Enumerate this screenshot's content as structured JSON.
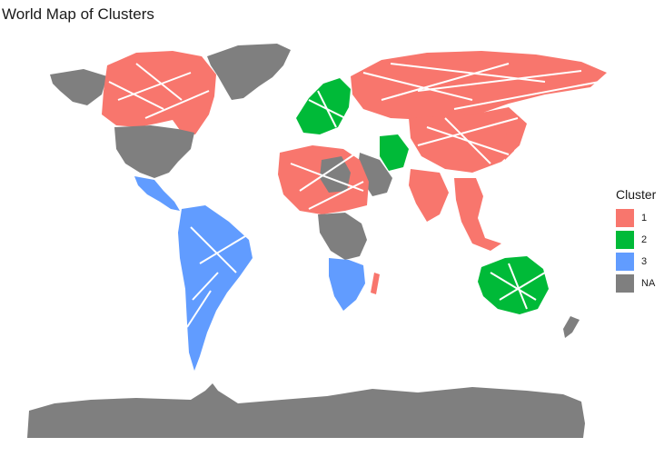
{
  "title": "World Map of Clusters",
  "legend": {
    "title": "Cluster",
    "items": [
      {
        "label": "1",
        "color": "#F8766D"
      },
      {
        "label": "2",
        "color": "#00BA38"
      },
      {
        "label": "3",
        "color": "#619CFF"
      },
      {
        "label": "NA",
        "color": "#7F7F7F"
      }
    ]
  },
  "colors": {
    "cluster_1": "#F8766D",
    "cluster_2": "#00BA38",
    "cluster_3": "#619CFF",
    "na": "#7F7F7F",
    "background": "#FFFFFF"
  },
  "regions": [
    {
      "name": "Greenland",
      "cluster": "NA"
    },
    {
      "name": "Canada",
      "cluster": "1"
    },
    {
      "name": "Alaska",
      "cluster": "NA"
    },
    {
      "name": "United States",
      "cluster": "NA"
    },
    {
      "name": "Mexico",
      "cluster": "3"
    },
    {
      "name": "South America",
      "cluster": "3"
    },
    {
      "name": "Western Europe",
      "cluster": "2"
    },
    {
      "name": "Russia",
      "cluster": "1"
    },
    {
      "name": "Central Asia",
      "cluster": "1"
    },
    {
      "name": "China",
      "cluster": "1"
    },
    {
      "name": "India",
      "cluster": "1"
    },
    {
      "name": "Southeast Asia",
      "cluster": "1"
    },
    {
      "name": "North Africa",
      "cluster": "1"
    },
    {
      "name": "Libya",
      "cluster": "NA"
    },
    {
      "name": "Arabian Peninsula",
      "cluster": "NA"
    },
    {
      "name": "Iran",
      "cluster": "2"
    },
    {
      "name": "Central Africa",
      "cluster": "NA"
    },
    {
      "name": "Southern Africa",
      "cluster": "3"
    },
    {
      "name": "Madagascar",
      "cluster": "1"
    },
    {
      "name": "Australia",
      "cluster": "2"
    },
    {
      "name": "New Zealand",
      "cluster": "NA"
    },
    {
      "name": "Antarctica",
      "cluster": "NA"
    }
  ]
}
